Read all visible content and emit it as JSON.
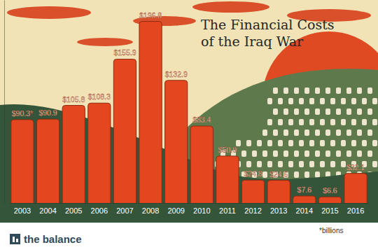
{
  "chart_data": {
    "type": "bar",
    "title": "The Financial Costs of the Iraq War",
    "categories": [
      "2003",
      "2004",
      "2005",
      "2006",
      "2007",
      "2008",
      "2009",
      "2010",
      "2011",
      "2012",
      "2013",
      "2014",
      "2015",
      "2016"
    ],
    "values": [
      90.3,
      90.9,
      105.8,
      108.3,
      155.9,
      196.8,
      132.9,
      83.4,
      50.9,
      24.8,
      24.6,
      7.6,
      6.6,
      32.1
    ],
    "value_labels": [
      "$90.3*",
      "$90.9",
      "$105.8",
      "$108.3",
      "$155.9",
      "$196.8",
      "$132.9",
      "$83.4",
      "$50.9",
      "$24.8",
      "$24.6",
      "$7.6",
      "$6.6",
      "$32.1"
    ],
    "color": "#e4471f",
    "ylim": [
      0,
      220
    ],
    "yticks": [],
    "tick_labels": "x",
    "data_labels": true,
    "note": "*billions",
    "source": "the balance"
  }
}
